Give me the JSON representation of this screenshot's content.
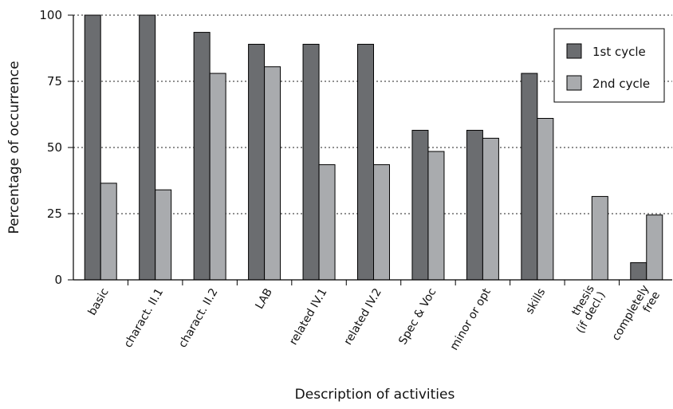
{
  "chart_data": {
    "type": "bar",
    "title": "",
    "xlabel": "Description of activities",
    "ylabel": "Percentage of occurrence",
    "ylim": [
      0,
      100
    ],
    "yticks": [
      0,
      25,
      50,
      75,
      100
    ],
    "ytick_labels": [
      "0",
      "25",
      "50",
      "75",
      "100"
    ],
    "grid": "horizontal dotted",
    "legend_position": "top-right",
    "categories": [
      "basic",
      "charact. II.1",
      "charact. II.2",
      "LAB",
      "related IV.1",
      "related  IV.2",
      "Spec & Voc",
      "minor or opt",
      "skills",
      "thesis\n(if decl.)",
      "completely\nfree"
    ],
    "series": [
      {
        "name": "1st cycle",
        "color": "#6b6d70",
        "values": [
          100,
          100,
          93.5,
          89,
          89,
          89,
          56.5,
          56.5,
          78,
          0,
          6.5
        ]
      },
      {
        "name": "2nd cycle",
        "color": "#a9abae",
        "values": [
          36.5,
          34,
          78,
          80.5,
          43.5,
          43.5,
          48.5,
          53.5,
          61,
          31.5,
          24.5
        ]
      }
    ]
  }
}
